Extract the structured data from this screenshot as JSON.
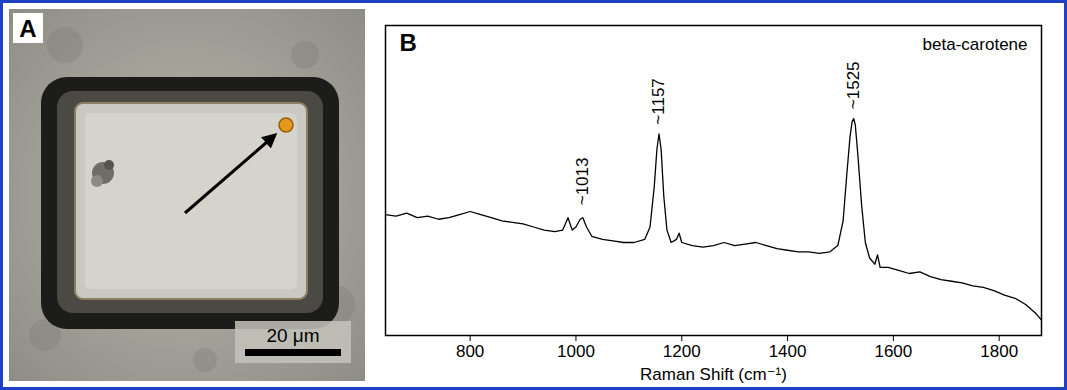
{
  "panel_a": {
    "letter": "A",
    "scale_bar": {
      "label": "20 μm",
      "length": 20
    }
  },
  "chart_data": {
    "letter": "B",
    "type": "line",
    "title": "beta-carotene",
    "x_label": "Raman Shift (cm⁻¹)",
    "color": "#000000",
    "x": [
      640,
      660,
      680,
      700,
      720,
      740,
      760,
      780,
      800,
      820,
      840,
      860,
      880,
      900,
      920,
      940,
      960,
      975,
      985,
      993,
      1000,
      1008,
      1013,
      1020,
      1030,
      1050,
      1070,
      1090,
      1110,
      1130,
      1140,
      1148,
      1153,
      1157,
      1161,
      1166,
      1172,
      1180,
      1190,
      1195,
      1200,
      1220,
      1240,
      1260,
      1280,
      1300,
      1320,
      1340,
      1360,
      1380,
      1400,
      1420,
      1440,
      1460,
      1480,
      1495,
      1505,
      1512,
      1518,
      1522,
      1525,
      1528,
      1533,
      1540,
      1547,
      1555,
      1565,
      1570,
      1575,
      1590,
      1610,
      1630,
      1650,
      1670,
      1690,
      1710,
      1730,
      1750,
      1770,
      1790,
      1810,
      1830,
      1850,
      1870,
      1880
    ],
    "values": [
      39,
      38.5,
      39.5,
      38,
      38.5,
      37.5,
      38,
      39,
      40,
      39,
      38,
      37,
      36.5,
      36,
      35,
      34,
      33.5,
      34,
      38,
      34,
      35,
      37.5,
      38,
      35,
      32,
      31,
      30.5,
      30,
      30,
      31,
      35,
      48,
      60,
      65,
      60,
      45,
      34,
      30,
      31,
      33,
      30,
      29,
      28.5,
      29,
      30,
      29,
      29.5,
      30,
      29,
      28,
      27.5,
      27,
      27,
      26.5,
      27,
      29,
      37,
      52,
      64,
      69,
      70,
      68,
      58,
      42,
      30,
      25,
      23,
      26,
      22,
      22,
      21,
      20,
      20.5,
      19,
      18,
      17.5,
      17,
      16,
      15.5,
      14.5,
      13,
      12,
      10,
      7,
      5
    ],
    "xlim": [
      640,
      1880
    ],
    "xticks": [
      800,
      1000,
      1200,
      1400,
      1600,
      1800
    ],
    "ylim": [
      0,
      100
    ],
    "tick_labels": "x",
    "annotations": [
      {
        "x": 1013,
        "y": 42,
        "text": "~1013"
      },
      {
        "x": 1157,
        "y": 68,
        "text": "~1157"
      },
      {
        "x": 1525,
        "y": 73,
        "text": "~1525"
      }
    ]
  }
}
